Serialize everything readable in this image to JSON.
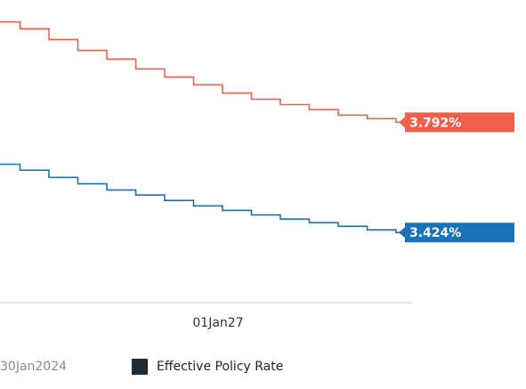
{
  "chart_data": {
    "type": "step-line",
    "categories": [
      null,
      null,
      null,
      null,
      null,
      null,
      null,
      null,
      "01Jan27",
      null,
      null,
      null,
      null,
      null,
      null
    ],
    "series": [
      {
        "color": "#f0604d",
        "values": [
          4.127,
          4.104,
          4.068,
          4.032,
          4.003,
          3.97,
          3.943,
          3.917,
          3.89,
          3.869,
          3.851,
          3.834,
          3.816,
          3.804,
          3.792
        ],
        "value_labels": [
          null,
          null,
          null,
          null,
          null,
          null,
          null,
          null,
          null,
          null,
          null,
          null,
          null,
          null,
          "3.792%"
        ]
      },
      {
        "color": "#1a73b8",
        "values": [
          3.652,
          3.632,
          3.608,
          3.587,
          3.566,
          3.549,
          3.531,
          3.513,
          3.498,
          3.483,
          3.469,
          3.457,
          3.445,
          3.433,
          3.424
        ],
        "value_labels": [
          null,
          null,
          null,
          null,
          null,
          null,
          null,
          null,
          null,
          null,
          null,
          null,
          null,
          null,
          "3.424%"
        ]
      }
    ],
    "ylim": [
      3.19,
      4.2
    ],
    "legend": [
      {
        "label": "30Jan2024"
      },
      {
        "label": "Effective Policy Rate",
        "color": "#1f2a36"
      }
    ]
  }
}
